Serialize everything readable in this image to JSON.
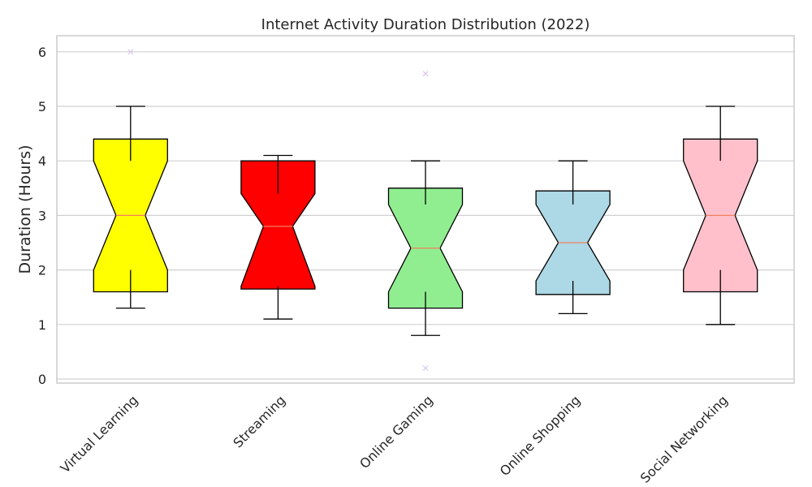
{
  "chart_data": {
    "type": "box",
    "title": "Internet Activity Duration Distribution (2022)",
    "xlabel": "",
    "ylabel": "Duration (Hours)",
    "ylim": [
      -0.05,
      6.3
    ],
    "yticks": [
      0,
      1,
      2,
      3,
      4,
      5,
      6
    ],
    "grid": true,
    "notched": true,
    "categories": [
      "Virtual Learning",
      "Streaming",
      "Online Gaming",
      "Online Shopping",
      "Social Networking"
    ],
    "boxes": [
      {
        "name": "Virtual Learning",
        "whisker_low": 1.3,
        "q1": 2.0,
        "median": 3.0,
        "q3": 4.0,
        "whisker_high": 5.0,
        "notch_low": 1.6,
        "notch_high": 4.4,
        "outliers": [
          6.0
        ],
        "color": "#ffff00"
      },
      {
        "name": "Streaming",
        "whisker_low": 1.1,
        "q1": 1.7,
        "median": 2.8,
        "q3": 3.4,
        "whisker_high": 4.1,
        "notch_low": 1.65,
        "notch_high": 4.0,
        "outliers": [],
        "color": "#ff0000"
      },
      {
        "name": "Online Gaming",
        "whisker_low": 0.8,
        "q1": 1.6,
        "median": 2.4,
        "q3": 3.2,
        "whisker_high": 4.0,
        "notch_low": 1.3,
        "notch_high": 3.5,
        "outliers": [
          5.6,
          0.2
        ],
        "color": "#90ee90"
      },
      {
        "name": "Online Shopping",
        "whisker_low": 1.2,
        "q1": 1.8,
        "median": 2.5,
        "q3": 3.2,
        "whisker_high": 4.0,
        "notch_low": 1.55,
        "notch_high": 3.45,
        "outliers": [],
        "color": "#add8e6"
      },
      {
        "name": "Social Networking",
        "whisker_low": 1.0,
        "q1": 2.0,
        "median": 3.0,
        "q3": 4.0,
        "whisker_high": 5.0,
        "notch_low": 1.6,
        "notch_high": 4.4,
        "outliers": [],
        "color": "#ffc0cb"
      }
    ],
    "colors": {
      "median_line": "#f08060",
      "outlier_marker": "#dcc8f0",
      "grid": "#d0d0d0",
      "frame": "#cccccc",
      "box_edge": "#000000"
    }
  }
}
